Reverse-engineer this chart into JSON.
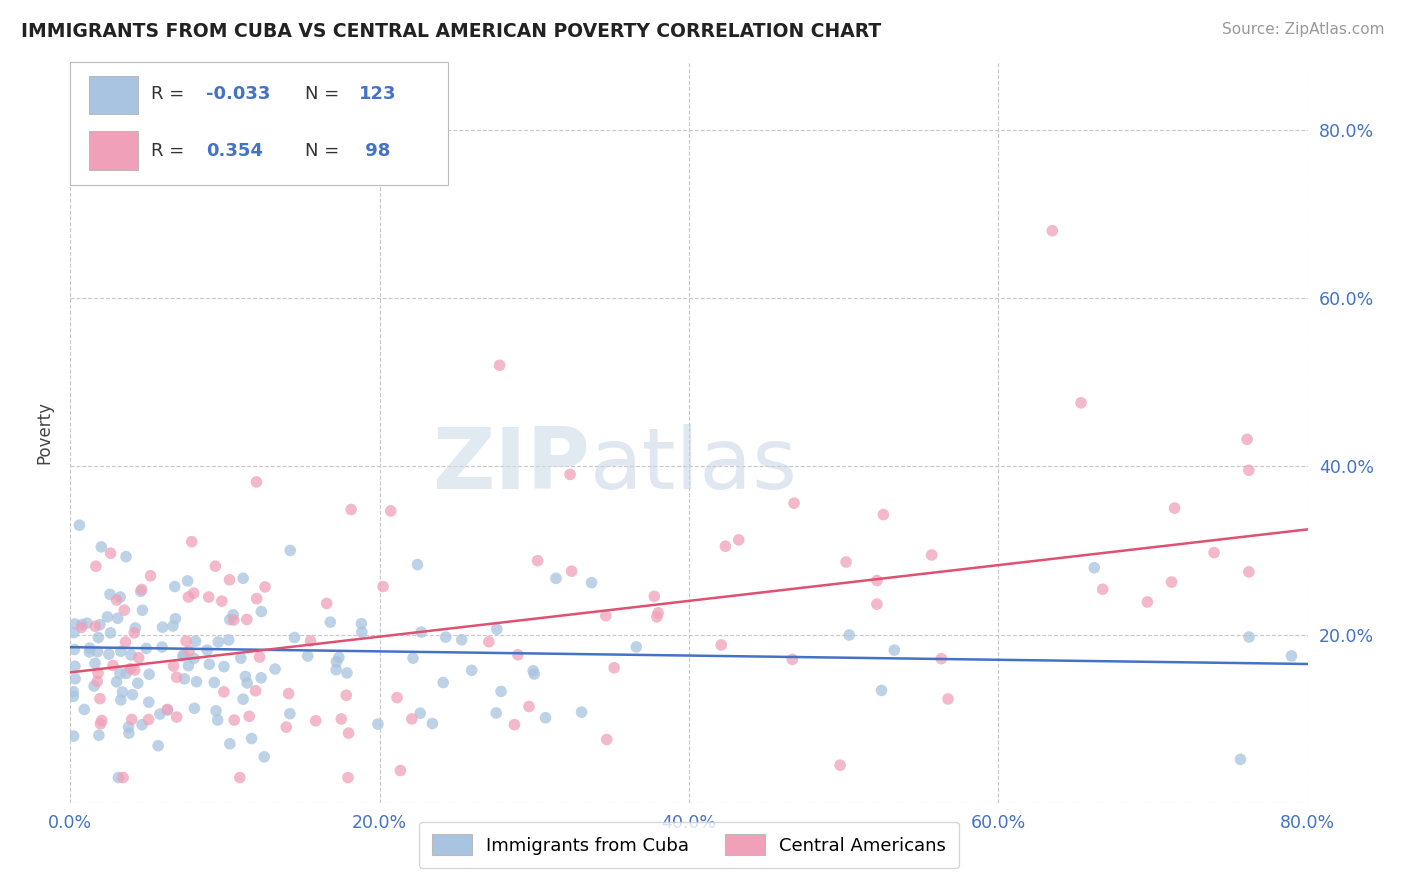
{
  "title": "IMMIGRANTS FROM CUBA VS CENTRAL AMERICAN POVERTY CORRELATION CHART",
  "source": "Source: ZipAtlas.com",
  "ylabel": "Poverty",
  "xlim": [
    0.0,
    0.8
  ],
  "ylim": [
    0.0,
    0.88
  ],
  "blue_R": -0.033,
  "blue_N": 123,
  "pink_R": 0.354,
  "pink_N": 98,
  "blue_color": "#a8c4e0",
  "pink_color": "#f0a0b8",
  "blue_line_color": "#4472c4",
  "pink_line_color": "#e05070",
  "background_color": "#ffffff",
  "grid_color": "#c8c8c8",
  "watermark_text": "ZIPatlas",
  "title_color": "#222222",
  "legend_label_blue": "Immigrants from Cuba",
  "legend_label_pink": "Central Americans",
  "blue_trend_start": 0.185,
  "blue_trend_end": 0.165,
  "pink_trend_start": 0.155,
  "pink_trend_end": 0.325
}
